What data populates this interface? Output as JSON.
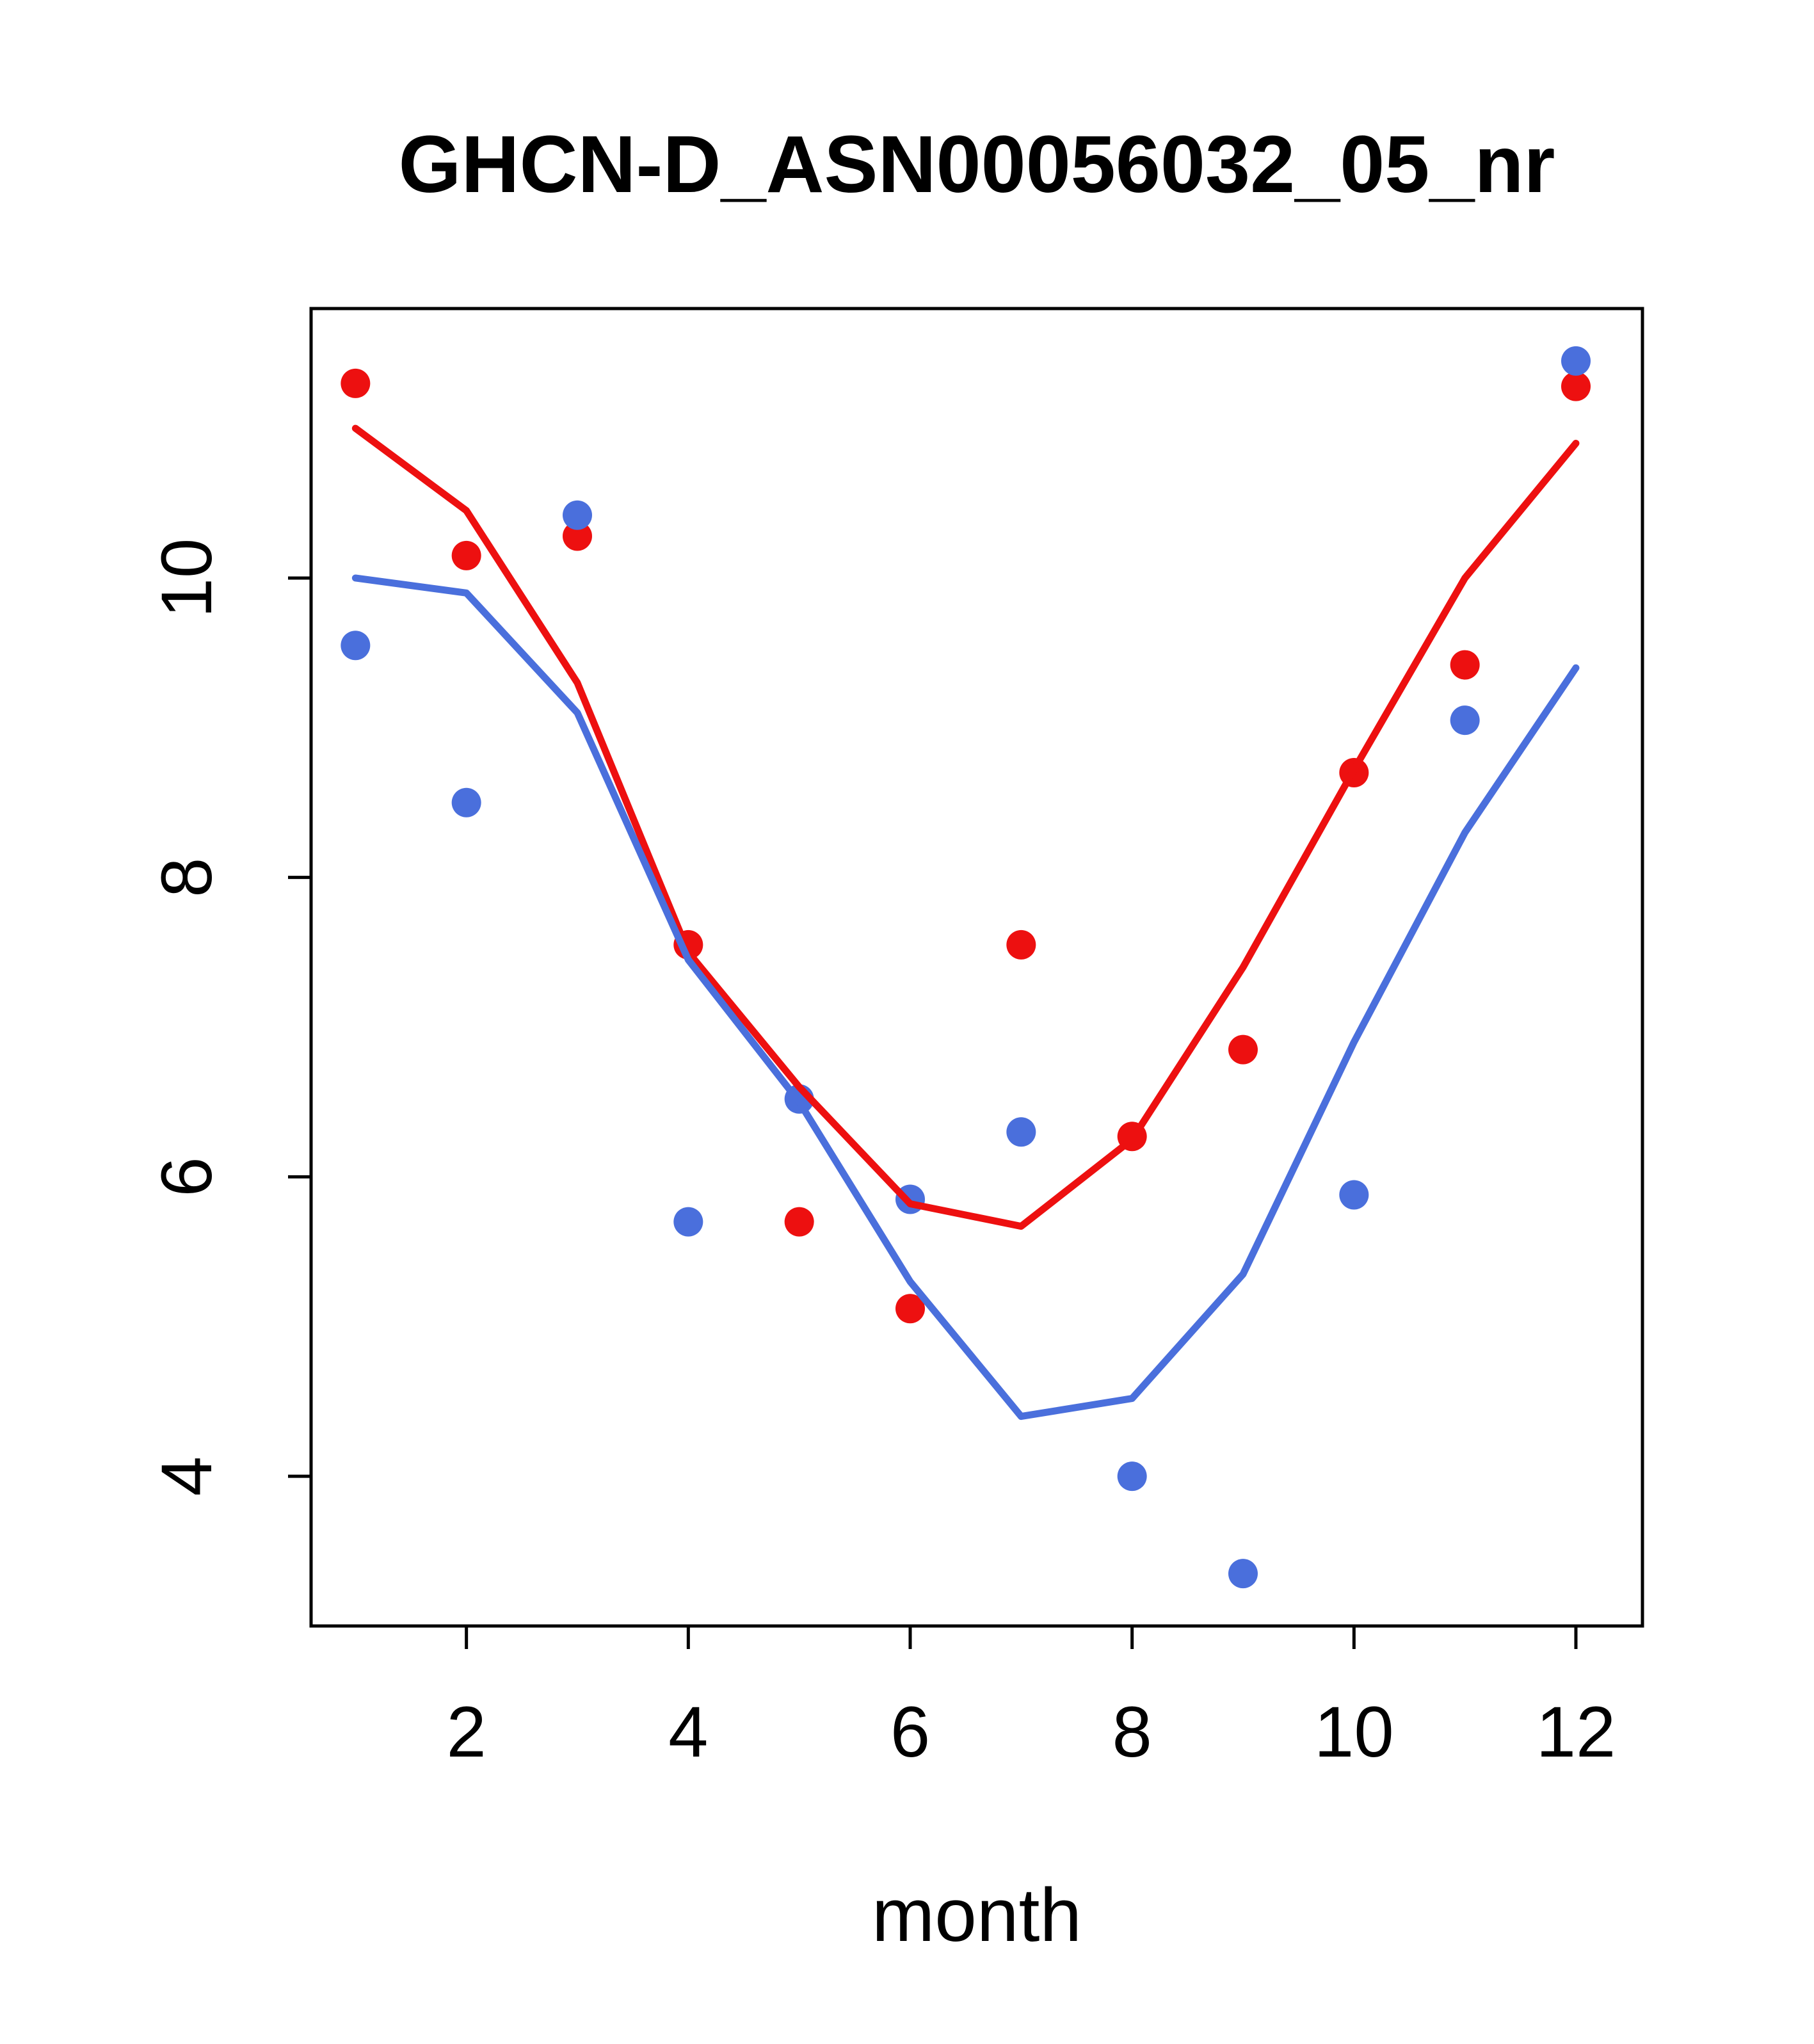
{
  "title": "GHCN-D_ASN00056032_05_nr",
  "chart_data": {
    "type": "scatter",
    "title": "GHCN-D_ASN00056032_05_nr",
    "xlabel": "month",
    "ylabel": "",
    "xlim": [
      0.6,
      12.6
    ],
    "ylim": [
      3.0,
      11.8
    ],
    "x_ticks": [
      2,
      4,
      6,
      8,
      10,
      12
    ],
    "y_ticks": [
      4,
      6,
      8,
      10
    ],
    "grid": false,
    "legend": "none",
    "months": [
      1,
      2,
      3,
      4,
      5,
      6,
      7,
      8,
      9,
      10,
      11,
      12
    ],
    "series": [
      {
        "name": "red-points",
        "kind": "points",
        "color": "#ed1010",
        "values": [
          11.3,
          10.15,
          10.28,
          7.55,
          5.7,
          5.12,
          7.55,
          6.27,
          6.85,
          8.7,
          9.42,
          11.28
        ]
      },
      {
        "name": "blue-points",
        "kind": "points",
        "color": "#4a6fdc",
        "values": [
          9.55,
          8.5,
          10.42,
          5.7,
          6.52,
          5.85,
          6.3,
          4.0,
          3.35,
          5.88,
          9.05,
          11.45
        ]
      },
      {
        "name": "red-smooth-line",
        "kind": "line",
        "color": "#ed1010",
        "values": [
          11.0,
          10.45,
          9.3,
          7.5,
          6.6,
          5.82,
          5.67,
          6.25,
          7.4,
          8.72,
          10.0,
          10.9
        ]
      },
      {
        "name": "blue-smooth-line",
        "kind": "line",
        "color": "#4a6fdc",
        "values": [
          10.0,
          9.9,
          9.1,
          7.45,
          6.5,
          5.3,
          4.4,
          4.52,
          5.35,
          6.9,
          8.3,
          9.4
        ]
      }
    ]
  },
  "colors": {
    "red_series": "#ed1010",
    "blue_series": "#4a6fdc",
    "axis": "#000000",
    "background": "#ffffff"
  }
}
